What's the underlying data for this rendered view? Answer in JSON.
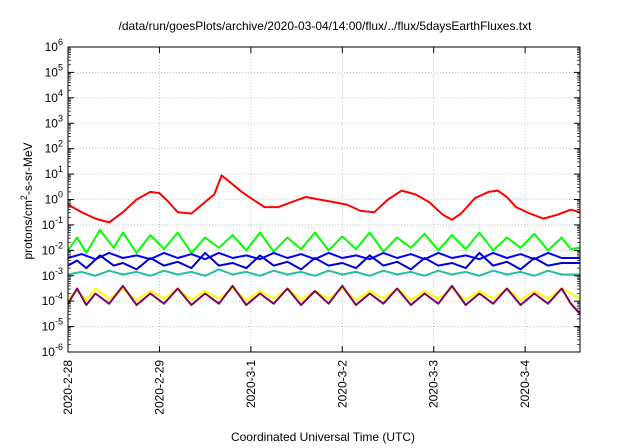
{
  "chart_data": {
    "type": "line",
    "title": "/data/run/goesPlots/archive/2020-03-04/14:00/flux/../flux/5daysEarthFluxes.txt",
    "xlabel": "Coordinated Universal Time (UTC)",
    "ylabel": {
      "base": "protons/cm",
      "sup": "2",
      "rest": "-s-sr-MeV"
    },
    "yscale": "log",
    "ylim_exponent": [
      -6,
      6
    ],
    "y_ticks": [
      {
        "base": "10",
        "exp": "-6"
      },
      {
        "base": "10",
        "exp": "-5"
      },
      {
        "base": "10",
        "exp": "-4"
      },
      {
        "base": "10",
        "exp": "-3"
      },
      {
        "base": "10",
        "exp": "-2"
      },
      {
        "base": "10",
        "exp": "-1"
      },
      {
        "base": "10",
        "exp": "0"
      },
      {
        "base": "10",
        "exp": "1"
      },
      {
        "base": "10",
        "exp": "2"
      },
      {
        "base": "10",
        "exp": "3"
      },
      {
        "base": "10",
        "exp": "4"
      },
      {
        "base": "10",
        "exp": "5"
      },
      {
        "base": "10",
        "exp": "6"
      }
    ],
    "xlim_days": [
      0,
      5.6
    ],
    "x_ticks": [
      {
        "label": "2020-2-28",
        "day": 0
      },
      {
        "label": "2020-2-29",
        "day": 1
      },
      {
        "label": "2020-3-1",
        "day": 2
      },
      {
        "label": "2020-3-2",
        "day": 3
      },
      {
        "label": "2020-3-3",
        "day": 4
      },
      {
        "label": "2020-3-4",
        "day": 5
      }
    ],
    "grid": true,
    "series": [
      {
        "color": "#ff0000",
        "points": [
          [
            0.0,
            -0.2
          ],
          [
            0.15,
            -0.5
          ],
          [
            0.3,
            -0.75
          ],
          [
            0.45,
            -0.9
          ],
          [
            0.6,
            -0.5
          ],
          [
            0.75,
            0.0
          ],
          [
            0.9,
            0.3
          ],
          [
            1.0,
            0.25
          ],
          [
            1.1,
            -0.1
          ],
          [
            1.2,
            -0.5
          ],
          [
            1.35,
            -0.55
          ],
          [
            1.5,
            -0.1
          ],
          [
            1.6,
            0.2
          ],
          [
            1.68,
            0.95
          ],
          [
            1.8,
            0.6
          ],
          [
            1.9,
            0.3
          ],
          [
            2.0,
            0.05
          ],
          [
            2.15,
            -0.3
          ],
          [
            2.3,
            -0.3
          ],
          [
            2.45,
            -0.1
          ],
          [
            2.6,
            0.1
          ],
          [
            2.75,
            0.0
          ],
          [
            2.9,
            -0.1
          ],
          [
            3.05,
            -0.2
          ],
          [
            3.2,
            -0.45
          ],
          [
            3.35,
            -0.5
          ],
          [
            3.5,
            0.0
          ],
          [
            3.65,
            0.35
          ],
          [
            3.8,
            0.2
          ],
          [
            3.95,
            -0.1
          ],
          [
            4.1,
            -0.6
          ],
          [
            4.2,
            -0.8
          ],
          [
            4.3,
            -0.55
          ],
          [
            4.45,
            0.05
          ],
          [
            4.6,
            0.3
          ],
          [
            4.7,
            0.35
          ],
          [
            4.8,
            0.1
          ],
          [
            4.9,
            -0.3
          ],
          [
            5.05,
            -0.55
          ],
          [
            5.2,
            -0.75
          ],
          [
            5.35,
            -0.6
          ],
          [
            5.5,
            -0.4
          ],
          [
            5.6,
            -0.5
          ]
        ]
      },
      {
        "color": "#00ff00",
        "points": [
          [
            0.0,
            -2.0
          ],
          [
            0.1,
            -1.5
          ],
          [
            0.2,
            -2.1
          ],
          [
            0.35,
            -1.2
          ],
          [
            0.5,
            -1.9
          ],
          [
            0.6,
            -1.3
          ],
          [
            0.75,
            -2.1
          ],
          [
            0.9,
            -1.4
          ],
          [
            1.05,
            -1.95
          ],
          [
            1.2,
            -1.3
          ],
          [
            1.35,
            -2.1
          ],
          [
            1.5,
            -1.5
          ],
          [
            1.65,
            -1.9
          ],
          [
            1.8,
            -1.4
          ],
          [
            1.95,
            -2.0
          ],
          [
            2.1,
            -1.3
          ],
          [
            2.25,
            -2.05
          ],
          [
            2.4,
            -1.5
          ],
          [
            2.55,
            -1.95
          ],
          [
            2.7,
            -1.3
          ],
          [
            2.85,
            -2.0
          ],
          [
            3.0,
            -1.45
          ],
          [
            3.15,
            -1.95
          ],
          [
            3.3,
            -1.3
          ],
          [
            3.45,
            -2.05
          ],
          [
            3.6,
            -1.5
          ],
          [
            3.75,
            -1.9
          ],
          [
            3.9,
            -1.35
          ],
          [
            4.05,
            -2.0
          ],
          [
            4.2,
            -1.4
          ],
          [
            4.35,
            -1.95
          ],
          [
            4.5,
            -1.3
          ],
          [
            4.65,
            -2.0
          ],
          [
            4.8,
            -1.5
          ],
          [
            4.95,
            -1.9
          ],
          [
            5.1,
            -1.35
          ],
          [
            5.25,
            -2.0
          ],
          [
            5.4,
            -1.5
          ],
          [
            5.5,
            -1.95
          ],
          [
            5.6,
            -1.9
          ]
        ]
      },
      {
        "color": "#0000ff",
        "points": [
          [
            0.0,
            -2.3
          ],
          [
            0.15,
            -2.15
          ],
          [
            0.3,
            -2.35
          ],
          [
            0.45,
            -2.1
          ],
          [
            0.6,
            -2.3
          ],
          [
            0.75,
            -2.2
          ],
          [
            0.9,
            -2.35
          ],
          [
            1.05,
            -2.1
          ],
          [
            1.2,
            -2.3
          ],
          [
            1.35,
            -2.15
          ],
          [
            1.5,
            -2.35
          ],
          [
            1.65,
            -2.1
          ],
          [
            1.8,
            -2.3
          ],
          [
            1.95,
            -2.2
          ],
          [
            2.1,
            -2.35
          ],
          [
            2.25,
            -2.1
          ],
          [
            2.4,
            -2.3
          ],
          [
            2.55,
            -2.15
          ],
          [
            2.7,
            -2.35
          ],
          [
            2.85,
            -2.1
          ],
          [
            3.0,
            -2.3
          ],
          [
            3.15,
            -2.2
          ],
          [
            3.3,
            -2.35
          ],
          [
            3.45,
            -2.1
          ],
          [
            3.6,
            -2.3
          ],
          [
            3.75,
            -2.15
          ],
          [
            3.9,
            -2.35
          ],
          [
            4.05,
            -2.1
          ],
          [
            4.2,
            -2.3
          ],
          [
            4.35,
            -2.2
          ],
          [
            4.5,
            -2.35
          ],
          [
            4.65,
            -2.1
          ],
          [
            4.8,
            -2.3
          ],
          [
            4.95,
            -2.15
          ],
          [
            5.1,
            -2.35
          ],
          [
            5.25,
            -2.1
          ],
          [
            5.4,
            -2.3
          ],
          [
            5.6,
            -2.3
          ]
        ]
      },
      {
        "color": "#0000cc",
        "points": [
          [
            0.0,
            -2.6
          ],
          [
            0.1,
            -2.4
          ],
          [
            0.2,
            -2.7
          ],
          [
            0.35,
            -2.2
          ],
          [
            0.5,
            -2.6
          ],
          [
            0.6,
            -2.5
          ],
          [
            0.75,
            -2.75
          ],
          [
            0.9,
            -2.3
          ],
          [
            1.05,
            -2.6
          ],
          [
            1.2,
            -2.45
          ],
          [
            1.35,
            -2.7
          ],
          [
            1.5,
            -2.1
          ],
          [
            1.65,
            -2.6
          ],
          [
            1.8,
            -2.5
          ],
          [
            1.95,
            -2.7
          ],
          [
            2.1,
            -2.2
          ],
          [
            2.25,
            -2.6
          ],
          [
            2.4,
            -2.45
          ],
          [
            2.55,
            -2.75
          ],
          [
            2.7,
            -2.3
          ],
          [
            2.85,
            -2.6
          ],
          [
            3.0,
            -2.5
          ],
          [
            3.15,
            -2.7
          ],
          [
            3.3,
            -2.2
          ],
          [
            3.45,
            -2.6
          ],
          [
            3.6,
            -2.45
          ],
          [
            3.75,
            -2.75
          ],
          [
            3.9,
            -2.3
          ],
          [
            4.05,
            -2.6
          ],
          [
            4.2,
            -2.5
          ],
          [
            4.35,
            -2.7
          ],
          [
            4.5,
            -2.1
          ],
          [
            4.65,
            -2.6
          ],
          [
            4.8,
            -2.45
          ],
          [
            4.95,
            -2.75
          ],
          [
            5.1,
            -2.3
          ],
          [
            5.25,
            -2.6
          ],
          [
            5.4,
            -2.5
          ],
          [
            5.6,
            -2.5
          ]
        ]
      },
      {
        "color": "#20c0a0",
        "points": [
          [
            0.0,
            -2.95
          ],
          [
            0.15,
            -2.85
          ],
          [
            0.3,
            -3.0
          ],
          [
            0.45,
            -2.8
          ],
          [
            0.6,
            -2.95
          ],
          [
            0.75,
            -2.85
          ],
          [
            0.9,
            -3.0
          ],
          [
            1.05,
            -2.8
          ],
          [
            1.2,
            -2.95
          ],
          [
            1.35,
            -2.85
          ],
          [
            1.5,
            -3.0
          ],
          [
            1.65,
            -2.75
          ],
          [
            1.8,
            -2.95
          ],
          [
            1.95,
            -2.85
          ],
          [
            2.1,
            -3.0
          ],
          [
            2.25,
            -2.8
          ],
          [
            2.4,
            -2.95
          ],
          [
            2.55,
            -2.85
          ],
          [
            2.7,
            -3.0
          ],
          [
            2.85,
            -2.8
          ],
          [
            3.0,
            -2.95
          ],
          [
            3.15,
            -2.85
          ],
          [
            3.3,
            -3.0
          ],
          [
            3.45,
            -2.8
          ],
          [
            3.6,
            -2.95
          ],
          [
            3.75,
            -2.85
          ],
          [
            3.9,
            -3.0
          ],
          [
            4.05,
            -2.8
          ],
          [
            4.2,
            -2.95
          ],
          [
            4.35,
            -2.85
          ],
          [
            4.5,
            -3.0
          ],
          [
            4.65,
            -2.8
          ],
          [
            4.8,
            -2.95
          ],
          [
            4.95,
            -2.85
          ],
          [
            5.1,
            -3.0
          ],
          [
            5.25,
            -2.8
          ],
          [
            5.4,
            -2.95
          ],
          [
            5.6,
            -2.95
          ]
        ]
      },
      {
        "color": "#ffff00",
        "points": [
          [
            0.0,
            -3.9
          ],
          [
            0.1,
            -3.6
          ],
          [
            0.2,
            -3.95
          ],
          [
            0.3,
            -3.5
          ],
          [
            0.45,
            -3.9
          ],
          [
            0.6,
            -3.55
          ],
          [
            0.75,
            -3.95
          ],
          [
            0.9,
            -3.6
          ],
          [
            1.05,
            -3.9
          ],
          [
            1.2,
            -3.5
          ],
          [
            1.35,
            -3.95
          ],
          [
            1.5,
            -3.6
          ],
          [
            1.65,
            -3.9
          ],
          [
            1.8,
            -3.5
          ],
          [
            1.95,
            -3.95
          ],
          [
            2.1,
            -3.6
          ],
          [
            2.25,
            -3.9
          ],
          [
            2.4,
            -3.5
          ],
          [
            2.55,
            -3.95
          ],
          [
            2.7,
            -3.6
          ],
          [
            2.85,
            -3.9
          ],
          [
            3.0,
            -3.5
          ],
          [
            3.15,
            -3.95
          ],
          [
            3.3,
            -3.6
          ],
          [
            3.45,
            -3.9
          ],
          [
            3.6,
            -3.5
          ],
          [
            3.75,
            -3.95
          ],
          [
            3.9,
            -3.6
          ],
          [
            4.05,
            -3.9
          ],
          [
            4.2,
            -3.5
          ],
          [
            4.35,
            -3.95
          ],
          [
            4.5,
            -3.6
          ],
          [
            4.65,
            -3.9
          ],
          [
            4.8,
            -3.5
          ],
          [
            4.95,
            -3.95
          ],
          [
            5.1,
            -3.6
          ],
          [
            5.25,
            -3.9
          ],
          [
            5.4,
            -3.5
          ],
          [
            5.6,
            -3.9
          ]
        ]
      },
      {
        "color": "#800060",
        "points": [
          [
            0.0,
            -4.1
          ],
          [
            0.1,
            -3.5
          ],
          [
            0.2,
            -4.15
          ],
          [
            0.3,
            -3.7
          ],
          [
            0.45,
            -4.1
          ],
          [
            0.6,
            -3.4
          ],
          [
            0.75,
            -4.15
          ],
          [
            0.9,
            -3.7
          ],
          [
            1.05,
            -4.1
          ],
          [
            1.2,
            -3.5
          ],
          [
            1.35,
            -4.15
          ],
          [
            1.5,
            -3.7
          ],
          [
            1.65,
            -4.1
          ],
          [
            1.8,
            -3.4
          ],
          [
            1.95,
            -4.15
          ],
          [
            2.1,
            -3.7
          ],
          [
            2.25,
            -4.1
          ],
          [
            2.4,
            -3.5
          ],
          [
            2.55,
            -4.15
          ],
          [
            2.7,
            -3.6
          ],
          [
            2.85,
            -4.1
          ],
          [
            3.0,
            -3.4
          ],
          [
            3.15,
            -4.15
          ],
          [
            3.3,
            -3.7
          ],
          [
            3.45,
            -4.1
          ],
          [
            3.6,
            -3.5
          ],
          [
            3.75,
            -4.15
          ],
          [
            3.9,
            -3.7
          ],
          [
            4.05,
            -4.1
          ],
          [
            4.2,
            -3.4
          ],
          [
            4.35,
            -4.15
          ],
          [
            4.5,
            -3.7
          ],
          [
            4.65,
            -4.1
          ],
          [
            4.8,
            -3.5
          ],
          [
            4.95,
            -4.15
          ],
          [
            5.1,
            -3.7
          ],
          [
            5.25,
            -4.1
          ],
          [
            5.4,
            -3.5
          ],
          [
            5.5,
            -4.1
          ],
          [
            5.6,
            -4.5
          ]
        ]
      }
    ]
  }
}
